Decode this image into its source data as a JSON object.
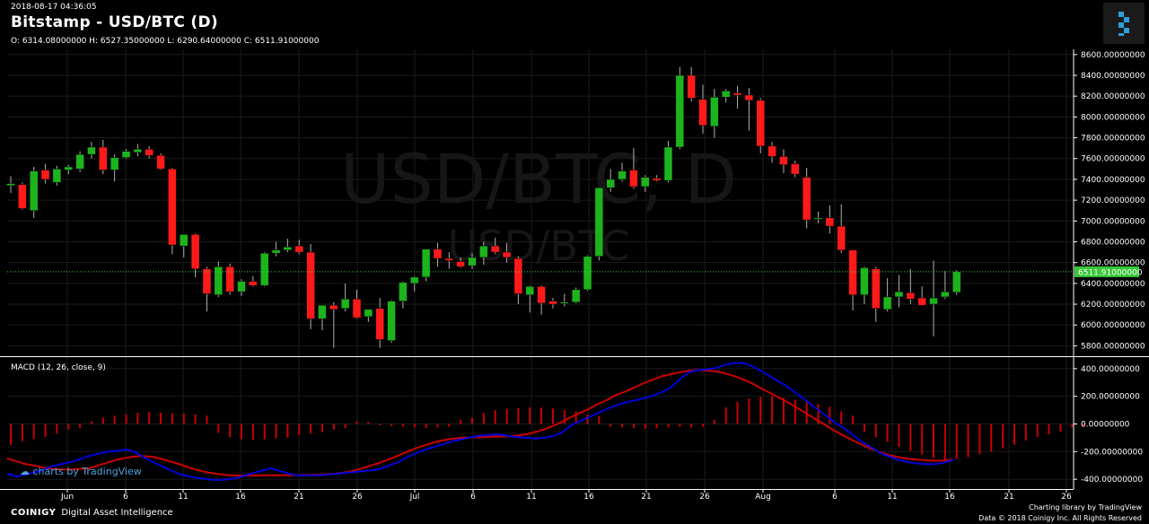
{
  "header": {
    "timestamp": "2018-08-17 04:36:05",
    "title": "Bitstamp - USD/BTC (D)",
    "ohlc": "O: 6314.08000000 H: 6527.35000000 L: 6290.64000000 C: 6511.91000000"
  },
  "watermark": {
    "big": "USD/BTC, D",
    "small": "USD/BTC"
  },
  "footer": {
    "brand": "COINIGY",
    "tagline": "Digital Asset Intelligence",
    "charting": "Charting library by TradingView",
    "data": "Data © 2018  Coinigy Inc. All Rights Reserved",
    "tv_badge": "charts by TradingView"
  },
  "colors": {
    "up": "#1db31d",
    "down": "#ff1a1a",
    "macd": "#0000dd",
    "signal": "#cc0000",
    "hist": "#cc0000",
    "price_line": "#37c837",
    "axis": "#ffffff"
  },
  "chart_data": [
    {
      "type": "candlestick",
      "title": "Bitstamp - USD/BTC (D)",
      "ylim": [
        5700,
        8650
      ],
      "price_ticks": [
        5800,
        6000,
        6200,
        6400,
        6600,
        6800,
        7000,
        7200,
        7400,
        7600,
        7800,
        8000,
        8200,
        8400,
        8600
      ],
      "tick_suffix": ".00000000",
      "last_price_label": "6511.91000000",
      "last_price": 6511.91,
      "x_labels": [
        "Jun",
        "6",
        "11",
        "16",
        "21",
        "26",
        "Jul",
        "6",
        "11",
        "16",
        "21",
        "26",
        "Aug",
        "6",
        "11",
        "16",
        "21",
        "26"
      ],
      "candles": [
        {
          "o": 7340,
          "h": 7430,
          "l": 7270,
          "c": 7360
        },
        {
          "o": 7350,
          "h": 7370,
          "l": 7110,
          "c": 7120
        },
        {
          "o": 7100,
          "h": 7520,
          "l": 7030,
          "c": 7480
        },
        {
          "o": 7490,
          "h": 7550,
          "l": 7360,
          "c": 7400
        },
        {
          "o": 7370,
          "h": 7530,
          "l": 7340,
          "c": 7500
        },
        {
          "o": 7490,
          "h": 7540,
          "l": 7450,
          "c": 7520
        },
        {
          "o": 7500,
          "h": 7670,
          "l": 7470,
          "c": 7640
        },
        {
          "o": 7640,
          "h": 7760,
          "l": 7600,
          "c": 7710
        },
        {
          "o": 7710,
          "h": 7780,
          "l": 7450,
          "c": 7490
        },
        {
          "o": 7490,
          "h": 7640,
          "l": 7380,
          "c": 7610
        },
        {
          "o": 7610,
          "h": 7690,
          "l": 7600,
          "c": 7670
        },
        {
          "o": 7660,
          "h": 7740,
          "l": 7620,
          "c": 7690
        },
        {
          "o": 7690,
          "h": 7720,
          "l": 7600,
          "c": 7630
        },
        {
          "o": 7630,
          "h": 7650,
          "l": 7490,
          "c": 7500
        },
        {
          "o": 7500,
          "h": 7510,
          "l": 6680,
          "c": 6770
        },
        {
          "o": 6760,
          "h": 6860,
          "l": 6650,
          "c": 6870
        },
        {
          "o": 6870,
          "h": 6880,
          "l": 6460,
          "c": 6540
        },
        {
          "o": 6540,
          "h": 6560,
          "l": 6130,
          "c": 6300
        },
        {
          "o": 6290,
          "h": 6610,
          "l": 6270,
          "c": 6560
        },
        {
          "o": 6560,
          "h": 6590,
          "l": 6290,
          "c": 6320
        },
        {
          "o": 6320,
          "h": 6440,
          "l": 6280,
          "c": 6420
        },
        {
          "o": 6420,
          "h": 6470,
          "l": 6370,
          "c": 6380
        },
        {
          "o": 6380,
          "h": 6700,
          "l": 6370,
          "c": 6690
        },
        {
          "o": 6690,
          "h": 6800,
          "l": 6660,
          "c": 6720
        },
        {
          "o": 6720,
          "h": 6830,
          "l": 6700,
          "c": 6750
        },
        {
          "o": 6760,
          "h": 6820,
          "l": 6680,
          "c": 6700
        },
        {
          "o": 6700,
          "h": 6780,
          "l": 5960,
          "c": 6060
        },
        {
          "o": 6060,
          "h": 6190,
          "l": 5950,
          "c": 6190
        },
        {
          "o": 6190,
          "h": 6220,
          "l": 5780,
          "c": 6150
        },
        {
          "o": 6160,
          "h": 6400,
          "l": 6130,
          "c": 6250
        },
        {
          "o": 6250,
          "h": 6340,
          "l": 6060,
          "c": 6070
        },
        {
          "o": 6080,
          "h": 6130,
          "l": 6030,
          "c": 6150
        },
        {
          "o": 6160,
          "h": 6260,
          "l": 5780,
          "c": 5860
        },
        {
          "o": 5850,
          "h": 6240,
          "l": 5830,
          "c": 6230
        },
        {
          "o": 6230,
          "h": 6420,
          "l": 6160,
          "c": 6410
        },
        {
          "o": 6400,
          "h": 6470,
          "l": 6320,
          "c": 6460
        },
        {
          "o": 6460,
          "h": 6720,
          "l": 6420,
          "c": 6730
        },
        {
          "o": 6730,
          "h": 6790,
          "l": 6560,
          "c": 6640
        },
        {
          "o": 6640,
          "h": 6700,
          "l": 6540,
          "c": 6620
        },
        {
          "o": 6610,
          "h": 6650,
          "l": 6550,
          "c": 6560
        },
        {
          "o": 6570,
          "h": 6690,
          "l": 6540,
          "c": 6650
        },
        {
          "o": 6650,
          "h": 6800,
          "l": 6580,
          "c": 6760
        },
        {
          "o": 6760,
          "h": 6840,
          "l": 6680,
          "c": 6700
        },
        {
          "o": 6700,
          "h": 6790,
          "l": 6600,
          "c": 6650
        },
        {
          "o": 6640,
          "h": 6660,
          "l": 6200,
          "c": 6300
        },
        {
          "o": 6290,
          "h": 6380,
          "l": 6120,
          "c": 6370
        },
        {
          "o": 6370,
          "h": 6380,
          "l": 6100,
          "c": 6210
        },
        {
          "o": 6230,
          "h": 6260,
          "l": 6160,
          "c": 6200
        },
        {
          "o": 6210,
          "h": 6300,
          "l": 6180,
          "c": 6220
        },
        {
          "o": 6220,
          "h": 6360,
          "l": 6210,
          "c": 6340
        },
        {
          "o": 6340,
          "h": 6670,
          "l": 6330,
          "c": 6660
        },
        {
          "o": 6660,
          "h": 7320,
          "l": 6620,
          "c": 7320
        },
        {
          "o": 7320,
          "h": 7500,
          "l": 7280,
          "c": 7400
        },
        {
          "o": 7400,
          "h": 7560,
          "l": 7380,
          "c": 7480
        },
        {
          "o": 7490,
          "h": 7700,
          "l": 7310,
          "c": 7330
        },
        {
          "o": 7330,
          "h": 7440,
          "l": 7280,
          "c": 7420
        },
        {
          "o": 7410,
          "h": 7440,
          "l": 7380,
          "c": 7390
        },
        {
          "o": 7390,
          "h": 7770,
          "l": 7370,
          "c": 7710
        },
        {
          "o": 7710,
          "h": 8480,
          "l": 7690,
          "c": 8400
        },
        {
          "o": 8400,
          "h": 8480,
          "l": 8150,
          "c": 8180
        },
        {
          "o": 8170,
          "h": 8310,
          "l": 7840,
          "c": 7920
        },
        {
          "o": 7910,
          "h": 8270,
          "l": 7800,
          "c": 8190
        },
        {
          "o": 8190,
          "h": 8270,
          "l": 8140,
          "c": 8250
        },
        {
          "o": 8230,
          "h": 8300,
          "l": 8080,
          "c": 8210
        },
        {
          "o": 8210,
          "h": 8280,
          "l": 7870,
          "c": 8160
        },
        {
          "o": 8160,
          "h": 8180,
          "l": 7650,
          "c": 7720
        },
        {
          "o": 7720,
          "h": 7760,
          "l": 7560,
          "c": 7620
        },
        {
          "o": 7620,
          "h": 7690,
          "l": 7460,
          "c": 7540
        },
        {
          "o": 7550,
          "h": 7580,
          "l": 7420,
          "c": 7450
        },
        {
          "o": 7420,
          "h": 7510,
          "l": 6930,
          "c": 7010
        },
        {
          "o": 7020,
          "h": 7090,
          "l": 6980,
          "c": 7030
        },
        {
          "o": 7030,
          "h": 7150,
          "l": 6880,
          "c": 6950
        },
        {
          "o": 6950,
          "h": 7160,
          "l": 6690,
          "c": 6720
        },
        {
          "o": 6720,
          "h": 6720,
          "l": 6140,
          "c": 6290
        },
        {
          "o": 6290,
          "h": 6560,
          "l": 6200,
          "c": 6550
        },
        {
          "o": 6540,
          "h": 6560,
          "l": 6030,
          "c": 6160
        },
        {
          "o": 6150,
          "h": 6450,
          "l": 6130,
          "c": 6270
        },
        {
          "o": 6270,
          "h": 6480,
          "l": 6170,
          "c": 6320
        },
        {
          "o": 6310,
          "h": 6540,
          "l": 6200,
          "c": 6250
        },
        {
          "o": 6260,
          "h": 6370,
          "l": 6190,
          "c": 6190
        },
        {
          "o": 6200,
          "h": 6620,
          "l": 5890,
          "c": 6260
        },
        {
          "o": 6270,
          "h": 6520,
          "l": 6250,
          "c": 6320
        },
        {
          "o": 6314.08,
          "h": 6527.35,
          "l": 6290.64,
          "c": 6511.91
        }
      ]
    },
    {
      "type": "macd",
      "title": "MACD (12, 26, close, 9)",
      "ylim": [
        -470,
        470
      ],
      "ticks": [
        -400,
        -200,
        0,
        200,
        400
      ],
      "tick_suffix": ".00000000",
      "macd": [
        -360,
        -380,
        -365,
        -350,
        -330,
        -305,
        -290,
        -275,
        -255,
        -230,
        -215,
        -200,
        -195,
        -185,
        -200,
        -240,
        -275,
        -305,
        -335,
        -365,
        -380,
        -390,
        -400,
        -405,
        -402,
        -395,
        -375,
        -355,
        -338,
        -320,
        -340,
        -360,
        -372,
        -370,
        -370,
        -368,
        -362,
        -355,
        -348,
        -342,
        -335,
        -325,
        -300,
        -275,
        -240,
        -210,
        -185,
        -165,
        -145,
        -125,
        -110,
        -95,
        -85,
        -80,
        -75,
        -85,
        -95,
        -100,
        -105,
        -100,
        -90,
        -60,
        -10,
        20,
        50,
        80,
        110,
        135,
        155,
        170,
        185,
        205,
        230,
        265,
        325,
        375,
        390,
        395,
        405,
        430,
        440,
        440,
        415,
        380,
        340,
        300,
        260,
        210,
        160,
        110,
        60,
        10,
        -30,
        -80,
        -130,
        -170,
        -210,
        -235,
        -260,
        -275,
        -285,
        -290,
        -290,
        -280,
        -260
      ],
      "signal": [
        -250,
        -270,
        -290,
        -300,
        -315,
        -325,
        -330,
        -330,
        -325,
        -320,
        -300,
        -280,
        -260,
        -245,
        -235,
        -232,
        -237,
        -252,
        -272,
        -292,
        -315,
        -335,
        -350,
        -360,
        -368,
        -372,
        -373,
        -372,
        -371,
        -370,
        -370,
        -370,
        -370,
        -368,
        -366,
        -364,
        -360,
        -352,
        -340,
        -320,
        -300,
        -280,
        -255,
        -228,
        -200,
        -174,
        -152,
        -132,
        -117,
        -106,
        -100,
        -97,
        -95,
        -93,
        -91,
        -90,
        -85,
        -75,
        -60,
        -40,
        -15,
        15,
        50,
        80,
        110,
        145,
        175,
        210,
        235,
        265,
        295,
        320,
        345,
        360,
        375,
        385,
        390,
        385,
        380,
        365,
        345,
        320,
        290,
        255,
        220,
        185,
        150,
        110,
        70,
        30,
        -10,
        -50,
        -85,
        -120,
        -150,
        -180,
        -205,
        -225,
        -240,
        -250,
        -258,
        -262,
        -266,
        -264,
        -258
      ],
      "histogram": [
        -150,
        -125,
        -110,
        -95,
        -70,
        -40,
        -30,
        20,
        45,
        60,
        70,
        80,
        85,
        80,
        78,
        75,
        70,
        60,
        -65,
        -95,
        -110,
        -115,
        -110,
        -105,
        -100,
        -80,
        -70,
        -60,
        -40,
        -30,
        20,
        15,
        -10,
        -15,
        -20,
        -25,
        -30,
        -25,
        -20,
        30,
        45,
        80,
        100,
        110,
        115,
        120,
        118,
        112,
        100,
        90,
        70,
        55,
        -20,
        -25,
        -30,
        -35,
        -30,
        -25,
        -20,
        -25,
        -20,
        30,
        120,
        160,
        185,
        195,
        200,
        190,
        175,
        160,
        145,
        125,
        90,
        60,
        -55,
        -95,
        -130,
        -165,
        -195,
        -220,
        -245,
        -255,
        -250,
        -240,
        -220,
        -200,
        -175,
        -150,
        -120,
        -95,
        -75,
        -55,
        -25,
        -20
      ]
    }
  ]
}
